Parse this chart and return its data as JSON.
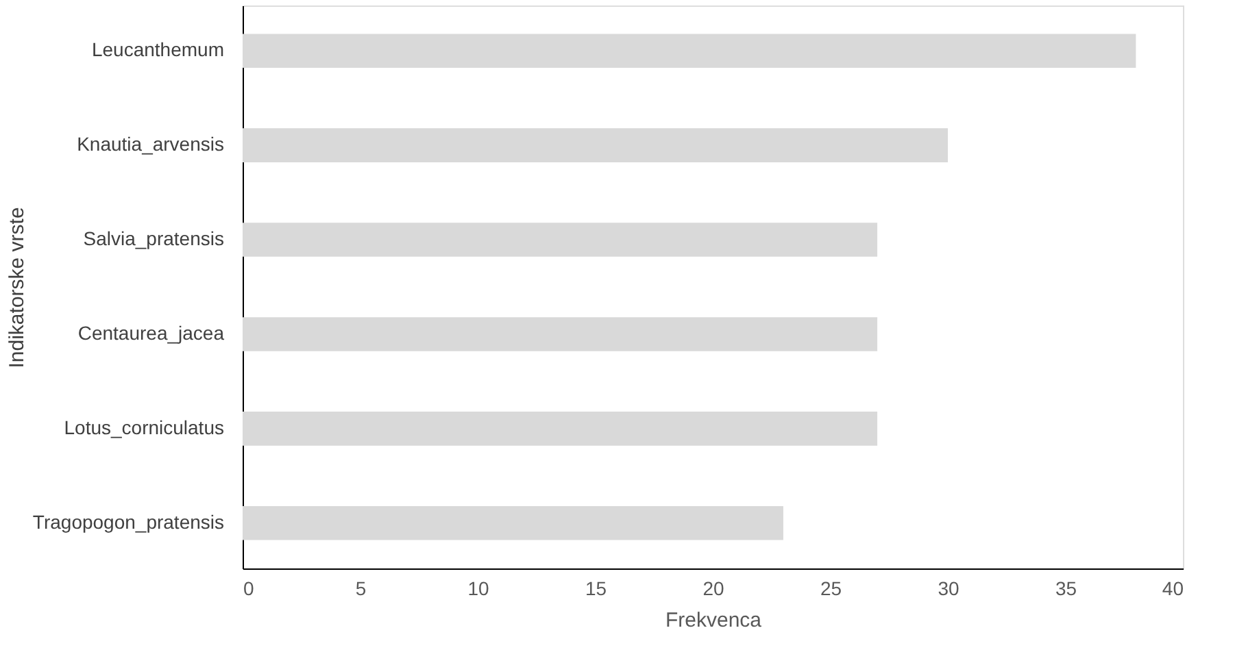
{
  "chart_data": {
    "type": "bar",
    "orientation": "horizontal",
    "xlabel": "Frekvenca",
    "ylabel": "Indikatorske vrste",
    "categories": [
      "Leucanthemum",
      "Knautia_arvensis",
      "Salvia_pratensis",
      "Centaurea_jacea",
      "Lotus_corniculatus",
      "Tragopogon_pratensis"
    ],
    "values": [
      38,
      30,
      27,
      27,
      27,
      23
    ],
    "color": "#d9d9d9",
    "xlim": [
      0,
      40
    ],
    "xticks": [
      0,
      5,
      10,
      15,
      20,
      25,
      30,
      35,
      40
    ],
    "grid": false,
    "legend": false
  }
}
